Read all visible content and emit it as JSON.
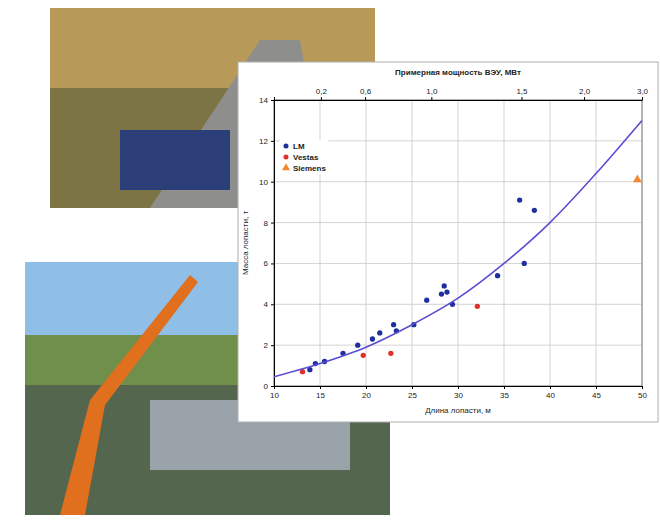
{
  "chart_data": {
    "type": "scatter",
    "x_label": "Длина лопасти, м",
    "y_label": "Масса лопасти, т",
    "x2_label": "Примерная мощность ВЭУ, МВт",
    "xlim": [
      10,
      50
    ],
    "xticks": [
      10,
      15,
      20,
      25,
      30,
      35,
      40,
      45,
      50
    ],
    "ylim": [
      0,
      14
    ],
    "yticks": [
      0,
      2,
      4,
      6,
      8,
      10,
      12,
      14
    ],
    "x2ticks": [
      {
        "value": 0.2,
        "label": "0,2"
      },
      {
        "value": 0.6,
        "label": "0,6"
      },
      {
        "value": 1.0,
        "label": "1,0"
      },
      {
        "value": 1.5,
        "label": "1,5"
      },
      {
        "value": 2.0,
        "label": "2,0"
      },
      {
        "value": 3.0,
        "label": "3,0"
      }
    ],
    "x2tick_positions": [
      15.1,
      19.9,
      27.1,
      36.9,
      43.7,
      50
    ],
    "grid": true,
    "legend": "upper left",
    "series": [
      {
        "name": "LM",
        "color": "#1f2f9f",
        "marker": "circle",
        "x": [
          13.9,
          14.5,
          15.5,
          17.5,
          19.1,
          20.7,
          21.5,
          23.0,
          23.3,
          25.2,
          26.6,
          28.2,
          28.5,
          28.8,
          29.4,
          34.3,
          36.7,
          37.2,
          38.3
        ],
        "values": [
          0.8,
          1.1,
          1.2,
          1.6,
          2.0,
          2.3,
          2.6,
          3.0,
          2.7,
          3.0,
          4.2,
          4.5,
          4.9,
          4.6,
          4.0,
          5.4,
          9.1,
          6.0,
          8.6
        ]
      },
      {
        "name": "Vestas",
        "color": "#e0302a",
        "marker": "circle",
        "x": [
          13.1,
          19.7,
          22.7,
          32.1
        ],
        "values": [
          0.7,
          1.5,
          1.6,
          3.9
        ]
      },
      {
        "name": "Siemens",
        "color": "#f08a30",
        "marker": "triangle",
        "x": [
          49.5
        ],
        "values": [
          10.1
        ]
      },
      {
        "type": "line",
        "color": "#5a4fd0",
        "line_style": "solid",
        "x": [
          10,
          15,
          20,
          25,
          30,
          35,
          40,
          45,
          50
        ],
        "values": [
          0.45,
          1.1,
          1.9,
          3.0,
          4.3,
          6.0,
          8.0,
          10.4,
          13.0
        ]
      }
    ]
  }
}
